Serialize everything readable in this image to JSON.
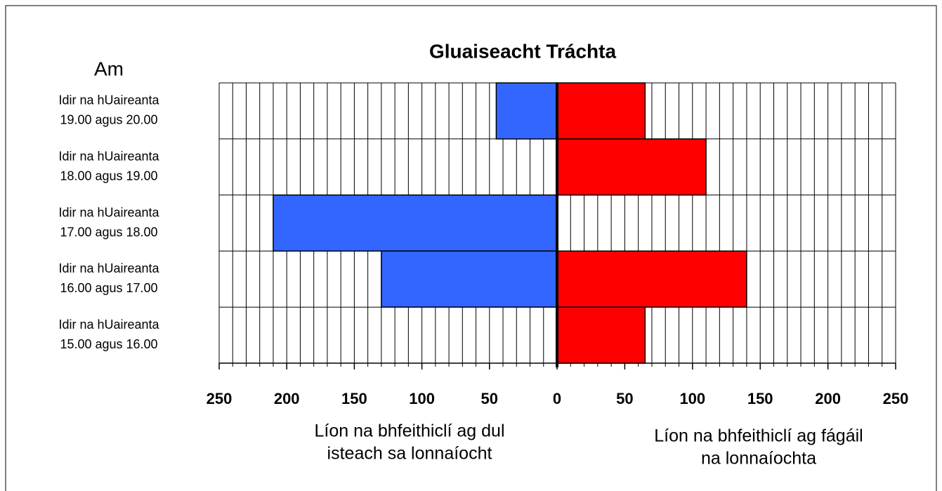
{
  "chart_data": {
    "type": "butterfly-bar",
    "title": "Gluaiseacht Tráchta",
    "category_axis_label": "Am",
    "categories": [
      [
        "Idir na hUaireanta",
        "19.00 agus 20.00"
      ],
      [
        "Idir na hUaireanta",
        "18.00 agus 19.00"
      ],
      [
        "Idir na hUaireanta",
        "17.00 agus 18.00"
      ],
      [
        "Idir na hUaireanta",
        "16.00 agus 17.00"
      ],
      [
        "Idir na hUaireanta",
        "15.00 agus 16.00"
      ]
    ],
    "series": [
      {
        "side": "left",
        "color": "#3366ff",
        "values": [
          45,
          0,
          210,
          130,
          0
        ],
        "axis_label": [
          "Líon na bhfeithiclí ag dul",
          "isteach sa lonnaíocht"
        ]
      },
      {
        "side": "right",
        "color": "#ff0000",
        "values": [
          65,
          110,
          0,
          140,
          65
        ],
        "axis_label": [
          "Líon na bhfeithiclí ag fágáil",
          "na lonnaíochta"
        ]
      }
    ],
    "xlim": [
      0,
      250
    ],
    "xticks_left": [
      0,
      50,
      100,
      150,
      200,
      250
    ],
    "xticks_right": [
      50,
      100,
      150,
      200,
      250
    ],
    "minor_step": 10,
    "grid": true
  }
}
